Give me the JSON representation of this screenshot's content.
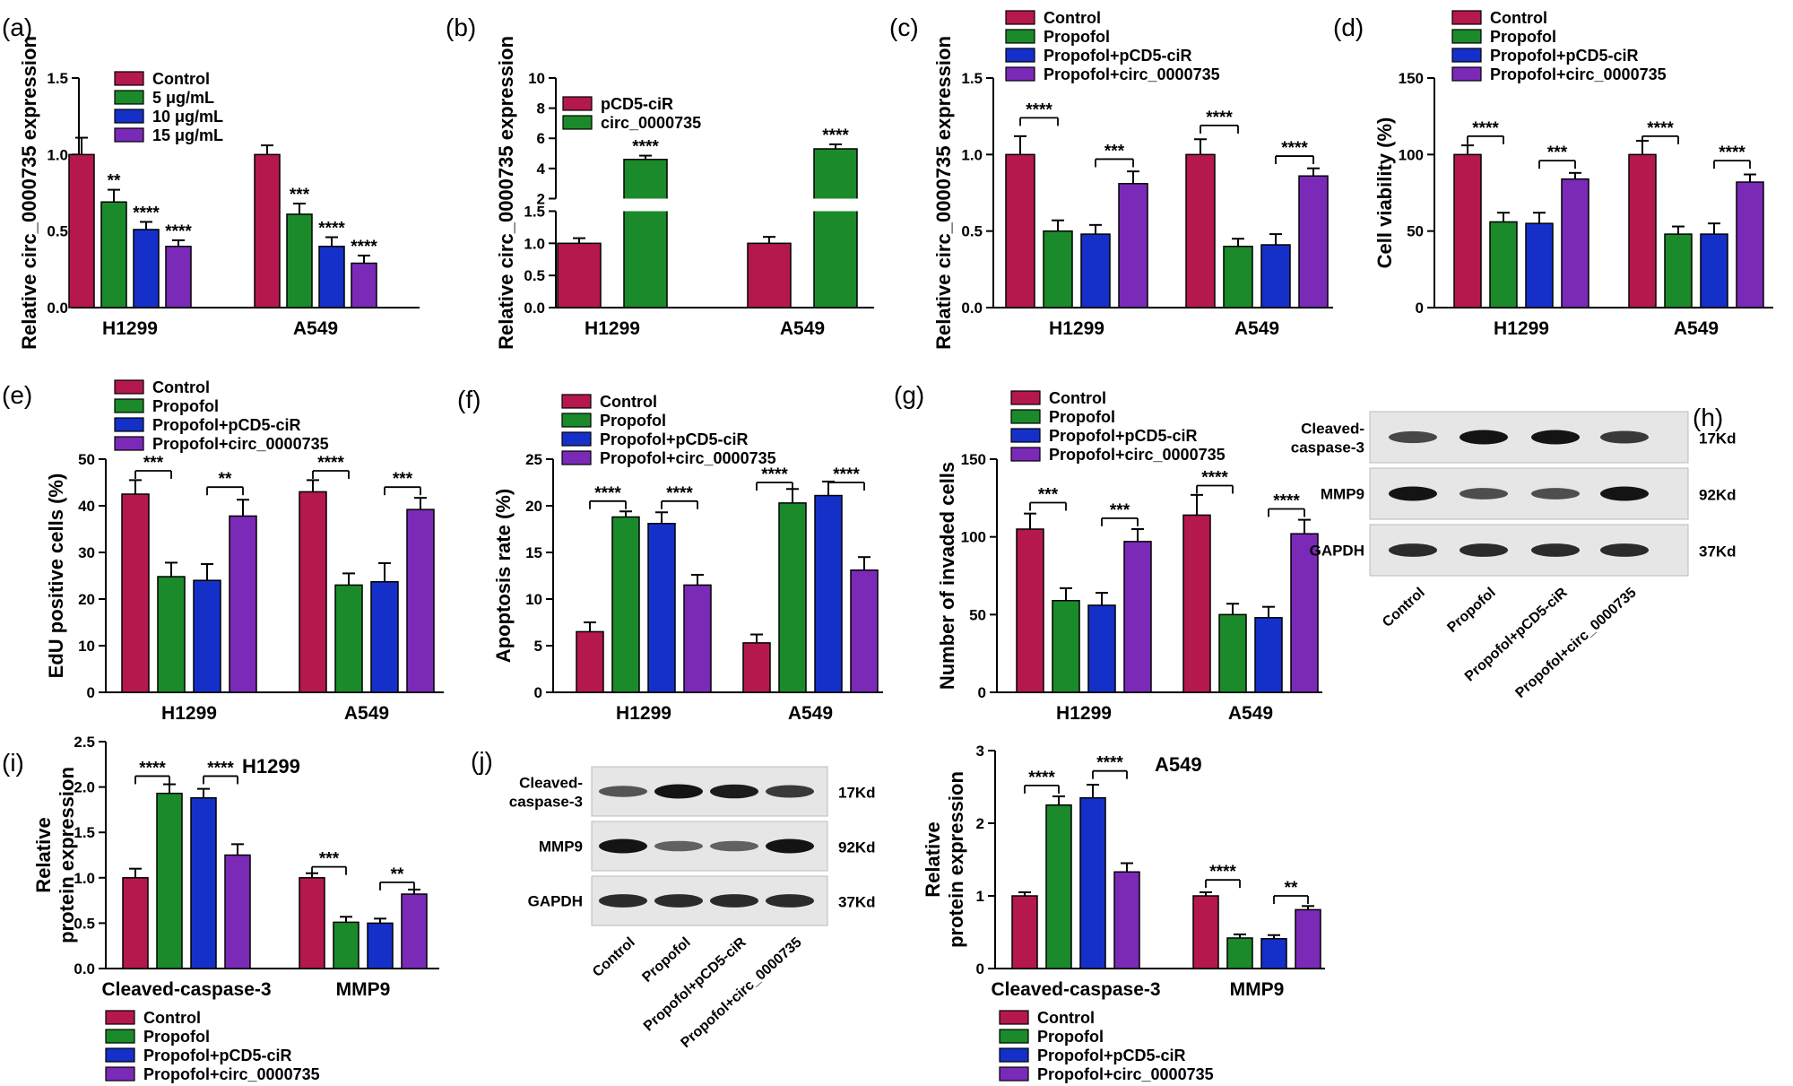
{
  "colors": {
    "Control": "#b5184c",
    "Propofol": "#1a8a2a",
    "Propofol+pCD5-ciR": "#1530c8",
    "Propofol+circ_0000735": "#7b2ab8",
    "5 μg/mL": "#1a8a2a",
    "10 μg/mL": "#1530c8",
    "15 μg/mL": "#7b2ab8",
    "pCD5-ciR": "#b5184c",
    "circ_0000735": "#1a8a2a"
  },
  "chart_data": [
    {
      "panel": "(a)",
      "type": "bar",
      "ylabel": "Relative circ_0000735 expression",
      "categories": [
        "H1299",
        "A549"
      ],
      "ylim": [
        0,
        1.5
      ],
      "yticks": [
        "0.0",
        "0.5",
        "1.0",
        "1.5"
      ],
      "ytick_values": [
        0,
        0.5,
        1.0,
        1.5
      ],
      "legend": [
        "Control",
        "5 μg/mL",
        "10 μg/mL",
        "15 μg/mL"
      ],
      "series": [
        {
          "name": "Control",
          "values": [
            1.0,
            1.0
          ],
          "errors": [
            0.11,
            0.06
          ]
        },
        {
          "name": "5 μg/mL",
          "values": [
            0.69,
            0.61
          ],
          "errors": [
            0.08,
            0.07
          ]
        },
        {
          "name": "10 μg/mL",
          "values": [
            0.51,
            0.4
          ],
          "errors": [
            0.05,
            0.06
          ]
        },
        {
          "name": "15 μg/mL",
          "values": [
            0.4,
            0.29
          ],
          "errors": [
            0.04,
            0.05
          ]
        }
      ],
      "stars": [
        {
          "cat": 0,
          "s": 1,
          "text": "**"
        },
        {
          "cat": 0,
          "s": 2,
          "text": "****"
        },
        {
          "cat": 0,
          "s": 3,
          "text": "****"
        },
        {
          "cat": 1,
          "s": 1,
          "text": "***"
        },
        {
          "cat": 1,
          "s": 2,
          "text": "****"
        },
        {
          "cat": 1,
          "s": 3,
          "text": "****"
        }
      ]
    },
    {
      "panel": "(b)",
      "type": "bar",
      "ylabel": "Relative circ_0000735 expression",
      "categories": [
        "H1299",
        "A549"
      ],
      "axis_break": [
        1.5,
        2.0
      ],
      "ylim": [
        0,
        10
      ],
      "yticks": [
        "0.0",
        "0.5",
        "1.0",
        "1.5",
        "2",
        "4",
        "6",
        "8",
        "10"
      ],
      "ytick_values": [
        0,
        0.5,
        1.0,
        1.5,
        2,
        4,
        6,
        8,
        10
      ],
      "legend": [
        "pCD5-ciR",
        "circ_0000735"
      ],
      "series": [
        {
          "name": "pCD5-ciR",
          "values": [
            1.0,
            1.0
          ],
          "errors": [
            0.08,
            0.1
          ]
        },
        {
          "name": "circ_0000735",
          "values": [
            4.6,
            5.3
          ],
          "errors": [
            0.25,
            0.3
          ]
        }
      ],
      "stars": [
        {
          "cat": 0,
          "s": 1,
          "text": "****"
        },
        {
          "cat": 1,
          "s": 1,
          "text": "****"
        }
      ]
    },
    {
      "panel": "(c)",
      "type": "bar",
      "ylabel": "Relative circ_0000735 expression",
      "categories": [
        "H1299",
        "A549"
      ],
      "ylim": [
        0,
        1.5
      ],
      "yticks": [
        "0.0",
        "0.5",
        "1.0",
        "1.5"
      ],
      "ytick_values": [
        0,
        0.5,
        1.0,
        1.5
      ],
      "legend": [
        "Control",
        "Propofol",
        "Propofol+pCD5-ciR",
        "Propofol+circ_0000735"
      ],
      "series": [
        {
          "name": "Control",
          "values": [
            1.0,
            1.0
          ],
          "errors": [
            0.12,
            0.1
          ]
        },
        {
          "name": "Propofol",
          "values": [
            0.5,
            0.4
          ],
          "errors": [
            0.07,
            0.05
          ]
        },
        {
          "name": "Propofol+pCD5-ciR",
          "values": [
            0.48,
            0.41
          ],
          "errors": [
            0.06,
            0.07
          ]
        },
        {
          "name": "Propofol+circ_0000735",
          "values": [
            0.81,
            0.86
          ],
          "errors": [
            0.08,
            0.05
          ]
        }
      ],
      "brackets": [
        {
          "cat": 0,
          "a": 0,
          "b": 1,
          "level": 1.24,
          "text": "****"
        },
        {
          "cat": 0,
          "a": 2,
          "b": 3,
          "level": 0.97,
          "text": "***"
        },
        {
          "cat": 1,
          "a": 0,
          "b": 1,
          "level": 1.19,
          "text": "****"
        },
        {
          "cat": 1,
          "a": 2,
          "b": 3,
          "level": 0.99,
          "text": "****"
        }
      ]
    },
    {
      "panel": "(d)",
      "type": "bar",
      "ylabel": "Cell viability (%)",
      "categories": [
        "H1299",
        "A549"
      ],
      "ylim": [
        0,
        150
      ],
      "yticks": [
        "0",
        "50",
        "100",
        "150"
      ],
      "ytick_values": [
        0,
        50,
        100,
        150
      ],
      "legend": [
        "Control",
        "Propofol",
        "Propofol+pCD5-ciR",
        "Propofol+circ_0000735"
      ],
      "series": [
        {
          "name": "Control",
          "values": [
            100,
            100
          ],
          "errors": [
            6,
            9
          ]
        },
        {
          "name": "Propofol",
          "values": [
            56,
            48
          ],
          "errors": [
            6,
            5
          ]
        },
        {
          "name": "Propofol+pCD5-ciR",
          "values": [
            55,
            48
          ],
          "errors": [
            7,
            7
          ]
        },
        {
          "name": "Propofol+circ_0000735",
          "values": [
            84,
            82
          ],
          "errors": [
            4,
            5
          ]
        }
      ],
      "brackets": [
        {
          "cat": 0,
          "a": 0,
          "b": 1,
          "level": 112,
          "text": "****"
        },
        {
          "cat": 0,
          "a": 2,
          "b": 3,
          "level": 96,
          "text": "***"
        },
        {
          "cat": 1,
          "a": 0,
          "b": 1,
          "level": 112,
          "text": "****"
        },
        {
          "cat": 1,
          "a": 2,
          "b": 3,
          "level": 96,
          "text": "****"
        }
      ]
    },
    {
      "panel": "(e)",
      "type": "bar",
      "ylabel": "EdU positive cells (%)",
      "categories": [
        "H1299",
        "A549"
      ],
      "ylim": [
        0,
        50
      ],
      "yticks": [
        "0",
        "10",
        "20",
        "30",
        "40",
        "50"
      ],
      "ytick_values": [
        0,
        10,
        20,
        30,
        40,
        50
      ],
      "legend": [
        "Control",
        "Propofol",
        "Propofol+pCD5-ciR",
        "Propofol+circ_0000735"
      ],
      "series": [
        {
          "name": "Control",
          "values": [
            42.5,
            43.0
          ],
          "errors": [
            3,
            2.5
          ]
        },
        {
          "name": "Propofol",
          "values": [
            24.8,
            23.0
          ],
          "errors": [
            3,
            2.5
          ]
        },
        {
          "name": "Propofol+pCD5-ciR",
          "values": [
            24.0,
            23.7
          ],
          "errors": [
            3.5,
            4
          ]
        },
        {
          "name": "Propofol+circ_0000735",
          "values": [
            37.8,
            39.2
          ],
          "errors": [
            3.5,
            2.5
          ]
        }
      ],
      "brackets": [
        {
          "cat": 0,
          "a": 0,
          "b": 1,
          "level": 47.5,
          "text": "***"
        },
        {
          "cat": 0,
          "a": 2,
          "b": 3,
          "level": 44,
          "text": "**"
        },
        {
          "cat": 1,
          "a": 0,
          "b": 1,
          "level": 47.5,
          "text": "****"
        },
        {
          "cat": 1,
          "a": 2,
          "b": 3,
          "level": 44,
          "text": "***"
        }
      ]
    },
    {
      "panel": "(f)",
      "type": "bar",
      "ylabel": "Apoptosis rate (%)",
      "categories": [
        "H1299",
        "A549"
      ],
      "ylim": [
        0,
        25
      ],
      "yticks": [
        "0",
        "5",
        "10",
        "15",
        "20",
        "25"
      ],
      "ytick_values": [
        0,
        5,
        10,
        15,
        20,
        25
      ],
      "legend": [
        "Control",
        "Propofol",
        "Propofol+pCD5-ciR",
        "Propofol+circ_0000735"
      ],
      "series": [
        {
          "name": "Control",
          "values": [
            6.5,
            5.3
          ],
          "errors": [
            1.0,
            0.9
          ]
        },
        {
          "name": "Propofol",
          "values": [
            18.8,
            20.3
          ],
          "errors": [
            0.6,
            1.5
          ]
        },
        {
          "name": "Propofol+pCD5-ciR",
          "values": [
            18.1,
            21.1
          ],
          "errors": [
            1.2,
            1.5
          ]
        },
        {
          "name": "Propofol+circ_0000735",
          "values": [
            11.5,
            13.1
          ],
          "errors": [
            1.1,
            1.4
          ]
        }
      ],
      "brackets": [
        {
          "cat": 0,
          "a": 0,
          "b": 1,
          "level": 20.5,
          "text": "****"
        },
        {
          "cat": 0,
          "a": 2,
          "b": 3,
          "level": 20.5,
          "text": "****"
        },
        {
          "cat": 1,
          "a": 0,
          "b": 1,
          "level": 22.5,
          "text": "****"
        },
        {
          "cat": 1,
          "a": 2,
          "b": 3,
          "level": 22.5,
          "text": "****"
        }
      ]
    },
    {
      "panel": "(g)",
      "type": "bar",
      "ylabel": "Number of invaded cells",
      "categories": [
        "H1299",
        "A549"
      ],
      "ylim": [
        0,
        150
      ],
      "yticks": [
        "0",
        "50",
        "100",
        "150"
      ],
      "ytick_values": [
        0,
        50,
        100,
        150
      ],
      "legend": [
        "Control",
        "Propofol",
        "Propofol+pCD5-ciR",
        "Propofol+circ_0000735"
      ],
      "series": [
        {
          "name": "Control",
          "values": [
            105,
            114
          ],
          "errors": [
            10,
            13
          ]
        },
        {
          "name": "Propofol",
          "values": [
            59,
            50
          ],
          "errors": [
            8,
            7
          ]
        },
        {
          "name": "Propofol+pCD5-ciR",
          "values": [
            56,
            48
          ],
          "errors": [
            8,
            7
          ]
        },
        {
          "name": "Propofol+circ_0000735",
          "values": [
            97,
            102
          ],
          "errors": [
            8,
            9
          ]
        }
      ],
      "brackets": [
        {
          "cat": 0,
          "a": 0,
          "b": 1,
          "level": 122,
          "text": "***"
        },
        {
          "cat": 0,
          "a": 2,
          "b": 3,
          "level": 112,
          "text": "***"
        },
        {
          "cat": 1,
          "a": 0,
          "b": 1,
          "level": 133,
          "text": "****"
        },
        {
          "cat": 1,
          "a": 2,
          "b": 3,
          "level": 118,
          "text": "****"
        }
      ]
    },
    {
      "panel": "(i)",
      "type": "bar",
      "title": "H1299",
      "ylabel": "Relative protein expression",
      "categories": [
        "Cleaved-caspase-3",
        "MMP9"
      ],
      "ylim": [
        0,
        2.5
      ],
      "yticks": [
        "0.0",
        "0.5",
        "1.0",
        "1.5",
        "2.0",
        "2.5"
      ],
      "ytick_values": [
        0,
        0.5,
        1.0,
        1.5,
        2.0,
        2.5
      ],
      "legend": [
        "Control",
        "Propofol",
        "Propofol+pCD5-ciR",
        "Propofol+circ_0000735"
      ],
      "series": [
        {
          "name": "Control",
          "values": [
            1.0,
            1.0
          ],
          "errors": [
            0.1,
            0.05
          ]
        },
        {
          "name": "Propofol",
          "values": [
            1.93,
            0.51
          ],
          "errors": [
            0.1,
            0.06
          ]
        },
        {
          "name": "Propofol+pCD5-ciR",
          "values": [
            1.88,
            0.5
          ],
          "errors": [
            0.1,
            0.05
          ]
        },
        {
          "name": "Propofol+circ_0000735",
          "values": [
            1.25,
            0.82
          ],
          "errors": [
            0.12,
            0.05
          ]
        }
      ],
      "brackets": [
        {
          "cat": 0,
          "a": 0,
          "b": 1,
          "level": 2.12,
          "text": "****"
        },
        {
          "cat": 0,
          "a": 2,
          "b": 3,
          "level": 2.12,
          "text": "****"
        },
        {
          "cat": 1,
          "a": 0,
          "b": 1,
          "level": 1.12,
          "text": "***"
        },
        {
          "cat": 1,
          "a": 2,
          "b": 3,
          "level": 0.95,
          "text": "**"
        }
      ]
    },
    {
      "panel": "(j)",
      "type": "bar",
      "title": "A549",
      "ylabel": "Relative protein expression",
      "categories": [
        "Cleaved-caspase-3",
        "MMP9"
      ],
      "ylim": [
        0,
        3
      ],
      "yticks": [
        "0",
        "1",
        "2",
        "3"
      ],
      "ytick_values": [
        0,
        1,
        2,
        3
      ],
      "legend": [
        "Control",
        "Propofol",
        "Propofol+pCD5-ciR",
        "Propofol+circ_0000735"
      ],
      "series": [
        {
          "name": "Control",
          "values": [
            1.0,
            1.0
          ],
          "errors": [
            0.05,
            0.05
          ]
        },
        {
          "name": "Propofol",
          "values": [
            2.25,
            0.42
          ],
          "errors": [
            0.12,
            0.05
          ]
        },
        {
          "name": "Propofol+pCD5-ciR",
          "values": [
            2.35,
            0.41
          ],
          "errors": [
            0.18,
            0.05
          ]
        },
        {
          "name": "Propofol+circ_0000735",
          "values": [
            1.33,
            0.81
          ],
          "errors": [
            0.12,
            0.05
          ]
        }
      ],
      "brackets": [
        {
          "cat": 0,
          "a": 0,
          "b": 1,
          "level": 2.52,
          "text": "****"
        },
        {
          "cat": 0,
          "a": 2,
          "b": 3,
          "level": 2.72,
          "text": "****"
        },
        {
          "cat": 1,
          "a": 0,
          "b": 1,
          "level": 1.22,
          "text": "****"
        },
        {
          "cat": 1,
          "a": 2,
          "b": 3,
          "level": 1.0,
          "text": "**"
        }
      ]
    }
  ],
  "blots": [
    {
      "panel": "(h)",
      "rows": [
        {
          "label": "Cleaved-\ncaspase-3",
          "size": "17Kd",
          "intensity": [
            0.65,
            1.0,
            1.0,
            0.75
          ]
        },
        {
          "label": "MMP9",
          "size": "92Kd",
          "intensity": [
            1.0,
            0.6,
            0.6,
            1.0
          ]
        },
        {
          "label": "GAPDH",
          "size": "37Kd",
          "intensity": [
            0.85,
            0.85,
            0.85,
            0.85
          ]
        }
      ],
      "lanes": [
        "Control",
        "Propofol",
        "Propofol+pCD5-ciR",
        "Propofol+circ_0000735"
      ]
    },
    {
      "panel": "(j) blot",
      "rows": [
        {
          "label": "Cleaved-\ncaspase-3",
          "size": "17Kd",
          "intensity": [
            0.55,
            1.0,
            0.95,
            0.75
          ]
        },
        {
          "label": "MMP9",
          "size": "92Kd",
          "intensity": [
            1.0,
            0.45,
            0.45,
            1.0
          ]
        },
        {
          "label": "GAPDH",
          "size": "37Kd",
          "intensity": [
            0.85,
            0.85,
            0.85,
            0.85
          ]
        }
      ],
      "lanes": [
        "Control",
        "Propofol",
        "Propofol+pCD5-ciR",
        "Propofol+circ_0000735"
      ]
    }
  ]
}
